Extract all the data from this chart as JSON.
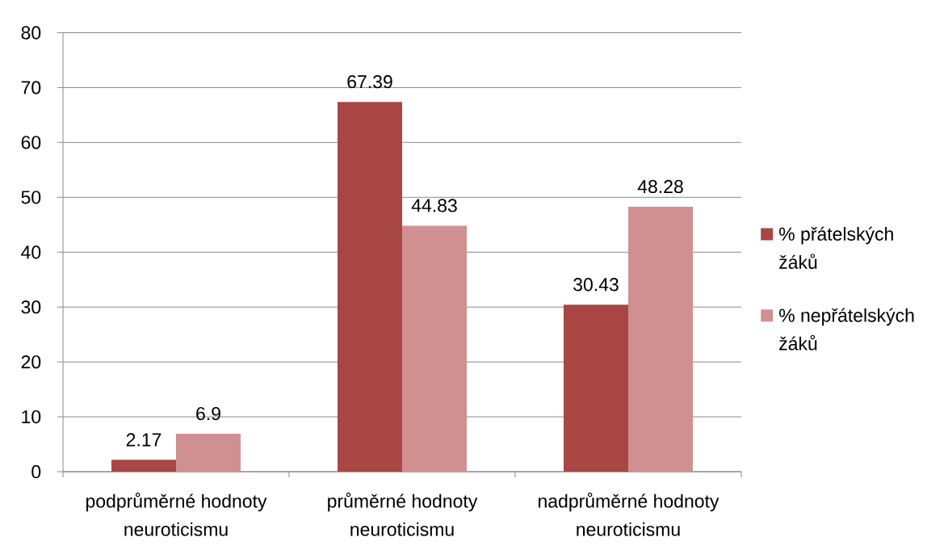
{
  "chart_data": {
    "type": "bar",
    "categories": [
      "podprůměrné hodnoty neuroticismu",
      "průměrné hodnoty neuroticismu",
      "nadprůměrné hodnoty neuroticismu"
    ],
    "series": [
      {
        "name": "% přátelských žáků",
        "color": "#a84644",
        "values": [
          2.17,
          67.39,
          30.43
        ]
      },
      {
        "name": "% nepřátelských žáků",
        "color": "#d09092",
        "values": [
          6.9,
          44.83,
          48.28
        ]
      }
    ],
    "ylim": [
      0,
      80
    ],
    "yticks": [
      0,
      10,
      20,
      30,
      40,
      50,
      60,
      70,
      80
    ],
    "grid": "y",
    "legend": "right",
    "data_labels": true
  }
}
